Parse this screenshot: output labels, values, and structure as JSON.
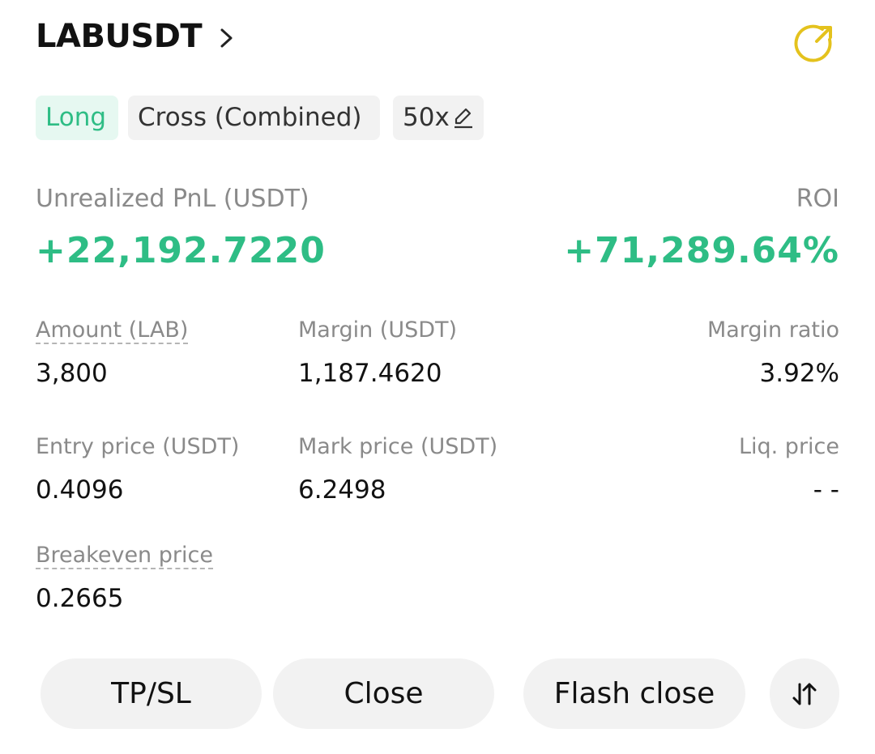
{
  "header": {
    "symbol": "LABUSDT"
  },
  "tags": [
    "Long",
    "Cross (Combined)",
    "50x"
  ],
  "pnl": {
    "label": "Unrealized PnL (USDT)",
    "value": "+22,192.7220"
  },
  "roi": {
    "label": "ROI",
    "value": "+71,289.64%"
  },
  "stats": [
    {
      "label": "Amount (LAB)",
      "value": "3,800"
    },
    {
      "label": "Margin (USDT)",
      "value": "1,187.4620"
    },
    {
      "label": "Margin ratio",
      "value": "3.92%"
    },
    {
      "label": "Entry price (USDT)",
      "value": "0.4096"
    },
    {
      "label": "Mark price (USDT)",
      "value": "6.2498"
    },
    {
      "label": "Liq. price",
      "value": "- -"
    },
    {
      "label": "Breakeven price",
      "value": "0.2665"
    }
  ],
  "buttons": [
    "TP/SL",
    "Close",
    "Flash close"
  ]
}
